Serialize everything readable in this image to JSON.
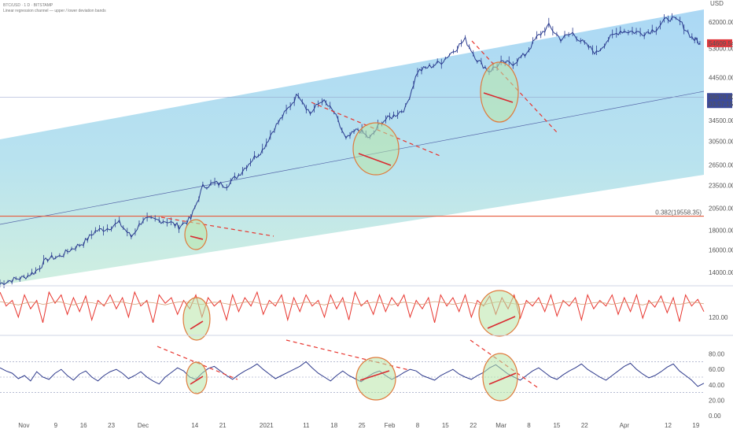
{
  "chart_data": [
    {
      "type": "line",
      "panel": "price",
      "title": "",
      "header_lines": [
        "BTC/USD · 1 D · BITSTAMP",
        "Linear regression channel — upper / lower deviation bands"
      ],
      "xlabel": "",
      "ylabel": "",
      "scale": "log",
      "ylim": [
        13000,
        68000
      ],
      "y_ticks": [
        "62000.00",
        "53000.00",
        "44500.00",
        "34500.00",
        "30500.00",
        "26500.00",
        "23500.00",
        "20500.00",
        "18000.00",
        "16000.00",
        "14000.00"
      ],
      "y_tick_values": [
        62000,
        53000,
        44500,
        34500,
        30500,
        26500,
        23500,
        20500,
        18000,
        16000,
        14000
      ],
      "axis_top_label": "USD",
      "price_labels": [
        {
          "text": "54609.54",
          "value": 54609.54,
          "color": "#e0393e"
        },
        {
          "text": "39679.80",
          "value": 39679.8,
          "color": "#3c4a9a"
        },
        {
          "text": "03:57:15",
          "value": 37400,
          "color": "#3c4a9a"
        }
      ],
      "horizontal_line": {
        "text": "0.382(19558.35)",
        "value": 19558.35,
        "color": "#e65a3c"
      },
      "mid_line_value": 39679.8,
      "grid": false,
      "series": [
        {
          "name": "",
          "color": "#2a3b8f",
          "x": [
            "2020-10-26",
            "2020-10-29",
            "2020-11-01",
            "2020-11-04",
            "2020-11-07",
            "2020-11-10",
            "2020-11-13",
            "2020-11-16",
            "2020-11-19",
            "2020-11-22",
            "2020-11-25",
            "2020-11-28",
            "2020-12-01",
            "2020-12-04",
            "2020-12-07",
            "2020-12-10",
            "2020-12-13",
            "2020-12-16",
            "2020-12-19",
            "2020-12-22",
            "2020-12-25",
            "2020-12-28",
            "2020-12-31",
            "2021-01-03",
            "2021-01-06",
            "2021-01-09",
            "2021-01-12",
            "2021-01-15",
            "2021-01-18",
            "2021-01-21",
            "2021-01-24",
            "2021-01-27",
            "2021-01-30",
            "2021-02-02",
            "2021-02-05",
            "2021-02-08",
            "2021-02-11",
            "2021-02-14",
            "2021-02-17",
            "2021-02-20",
            "2021-02-23",
            "2021-02-26",
            "2021-03-01",
            "2021-03-04",
            "2021-03-07",
            "2021-03-10",
            "2021-03-13",
            "2021-03-16",
            "2021-03-19",
            "2021-03-22",
            "2021-03-25",
            "2021-03-28",
            "2021-03-31",
            "2021-04-03",
            "2021-04-06",
            "2021-04-09",
            "2021-04-12",
            "2021-04-15",
            "2021-04-18",
            "2021-04-20"
          ],
          "values": [
            13100,
            13400,
            13600,
            14100,
            15200,
            15400,
            16100,
            16700,
            17900,
            18200,
            18800,
            17300,
            19200,
            19100,
            19000,
            18400,
            19300,
            23300,
            23800,
            23500,
            25000,
            27100,
            29000,
            33000,
            36500,
            40500,
            36000,
            39000,
            36200,
            30800,
            32800,
            31000,
            34300,
            35500,
            37200,
            46200,
            47500,
            48900,
            52200,
            55800,
            49500,
            46300,
            48500,
            48500,
            51000,
            56500,
            60500,
            56000,
            58000,
            54300,
            51500,
            56000,
            58800,
            58500,
            58000,
            59500,
            63500,
            62000,
            56500,
            54609
          ]
        }
      ],
      "annotations": {
        "dashed_trendlines": 4,
        "ellipses": 4,
        "underlines": 4
      }
    },
    {
      "type": "line",
      "panel": "oscillator-1",
      "title": "",
      "ylim": [
        90,
        175
      ],
      "y_ticks": [
        "120.00"
      ],
      "y_tick_values": [
        120
      ],
      "series": [
        {
          "name": "",
          "color": "#e8352e",
          "values": [
            165,
            140,
            150,
            120,
            160,
            135,
            150,
            110,
            165,
            145,
            160,
            125,
            155,
            130,
            158,
            115,
            150,
            140,
            160,
            135,
            155,
            120,
            165,
            140,
            150,
            110,
            160,
            145,
            155,
            125,
            150,
            135,
            160,
            120,
            155,
            140,
            150,
            115,
            160,
            130,
            155,
            140,
            165,
            125,
            150,
            140,
            160,
            115,
            155,
            130,
            160,
            140,
            150,
            120,
            160,
            135,
            155,
            115,
            165,
            140,
            150,
            125,
            160,
            130,
            155,
            140,
            160,
            120,
            150,
            135,
            155,
            110,
            160,
            140,
            155,
            130,
            160,
            120,
            150,
            140,
            158,
            125,
            155,
            135,
            160,
            118,
            150,
            140,
            155,
            130,
            160,
            122,
            150,
            140,
            155,
            115,
            160,
            135,
            150,
            140,
            160,
            125,
            155,
            130,
            160,
            118,
            150,
            138,
            158,
            128,
            155,
            112,
            160,
            140,
            152,
            130
          ]
        },
        {
          "name": "",
          "color": "#d8a07a",
          "values": [
            148,
            146,
            144,
            142,
            145,
            147,
            146,
            143,
            145,
            148,
            147,
            144,
            142,
            145,
            147,
            146,
            144,
            143,
            146,
            148,
            147,
            145,
            143,
            145,
            147,
            146,
            144,
            142,
            145,
            147,
            148,
            146,
            144,
            143,
            145,
            147,
            146,
            144,
            142,
            145,
            147,
            148,
            146,
            143,
            144,
            146,
            147,
            145,
            143,
            145,
            147,
            146,
            144,
            142,
            145,
            147,
            148,
            146,
            144,
            143,
            145,
            147,
            146,
            144,
            142,
            145,
            147,
            146,
            144,
            143,
            146,
            148,
            147,
            145,
            143,
            145,
            147,
            146,
            144,
            142,
            145,
            147,
            148,
            146,
            144,
            143,
            145,
            147,
            146,
            144,
            142,
            145,
            147,
            148,
            146,
            143,
            144,
            146,
            147,
            145,
            143,
            145,
            147,
            146,
            144,
            142,
            145,
            147,
            148,
            146,
            144,
            143,
            145,
            147,
            146,
            144
          ]
        }
      ],
      "annotations": {
        "ellipses": 2,
        "underlines": 2
      }
    },
    {
      "type": "line",
      "panel": "oscillator-2",
      "title": "",
      "ylim": [
        0,
        100
      ],
      "y_ticks": [
        "80.00",
        "60.00",
        "40.00",
        "20.00",
        "0.00"
      ],
      "y_tick_values": [
        80,
        60,
        40,
        20,
        0
      ],
      "reference_levels": [
        70,
        50,
        30
      ],
      "series": [
        {
          "name": "",
          "color": "#2e3a8c",
          "values": [
            62,
            58,
            55,
            48,
            52,
            45,
            57,
            50,
            47,
            55,
            60,
            52,
            46,
            54,
            58,
            50,
            45,
            52,
            57,
            60,
            55,
            48,
            52,
            57,
            50,
            45,
            41,
            50,
            56,
            62,
            58,
            50,
            47,
            55,
            61,
            64,
            58,
            52,
            47,
            53,
            58,
            62,
            67,
            60,
            54,
            48,
            52,
            56,
            60,
            64,
            70,
            62,
            55,
            50,
            45,
            52,
            58,
            52,
            48,
            44,
            50,
            55,
            58,
            52,
            47,
            51,
            56,
            60,
            58,
            52,
            49,
            46,
            52,
            56,
            60,
            54,
            50,
            47,
            52,
            56,
            62,
            66,
            60,
            54,
            50,
            46,
            52,
            58,
            62,
            56,
            50,
            47,
            53,
            58,
            62,
            67,
            60,
            55,
            50,
            46,
            52,
            58,
            64,
            68,
            60,
            54,
            49,
            52,
            57,
            63,
            67,
            58,
            52,
            46,
            38,
            42
          ]
        }
      ],
      "annotations": {
        "dashed_trendlines": 4,
        "ellipses": 3,
        "underlines": 3
      }
    }
  ],
  "x_axis": {
    "tick_labels": [
      "Nov",
      "9",
      "16",
      "23",
      "Dec",
      "14",
      "21",
      "2021",
      "11",
      "18",
      "25",
      "Feb",
      "8",
      "15",
      "22",
      "Mar",
      "8",
      "15",
      "22",
      "Apr",
      "12",
      "19"
    ],
    "tick_dates": [
      "2020-11-01",
      "2020-11-09",
      "2020-11-16",
      "2020-11-23",
      "2020-12-01",
      "2020-12-14",
      "2020-12-21",
      "2021-01-01",
      "2021-01-11",
      "2021-01-18",
      "2021-01-25",
      "2021-02-01",
      "2021-02-08",
      "2021-02-15",
      "2021-02-22",
      "2021-03-01",
      "2021-03-08",
      "2021-03-15",
      "2021-03-22",
      "2021-04-01",
      "2021-04-12",
      "2021-04-19"
    ]
  },
  "colors": {
    "channel_upper": "#a9d8f5",
    "channel_lower": "#c8ece6",
    "price_line": "#2a3b8f",
    "dashed_trend": "#e8352e",
    "ellipse_fill": "#b8e6a8",
    "ellipse_stroke": "#e07a3c",
    "fib_line": "#e65a3c"
  }
}
